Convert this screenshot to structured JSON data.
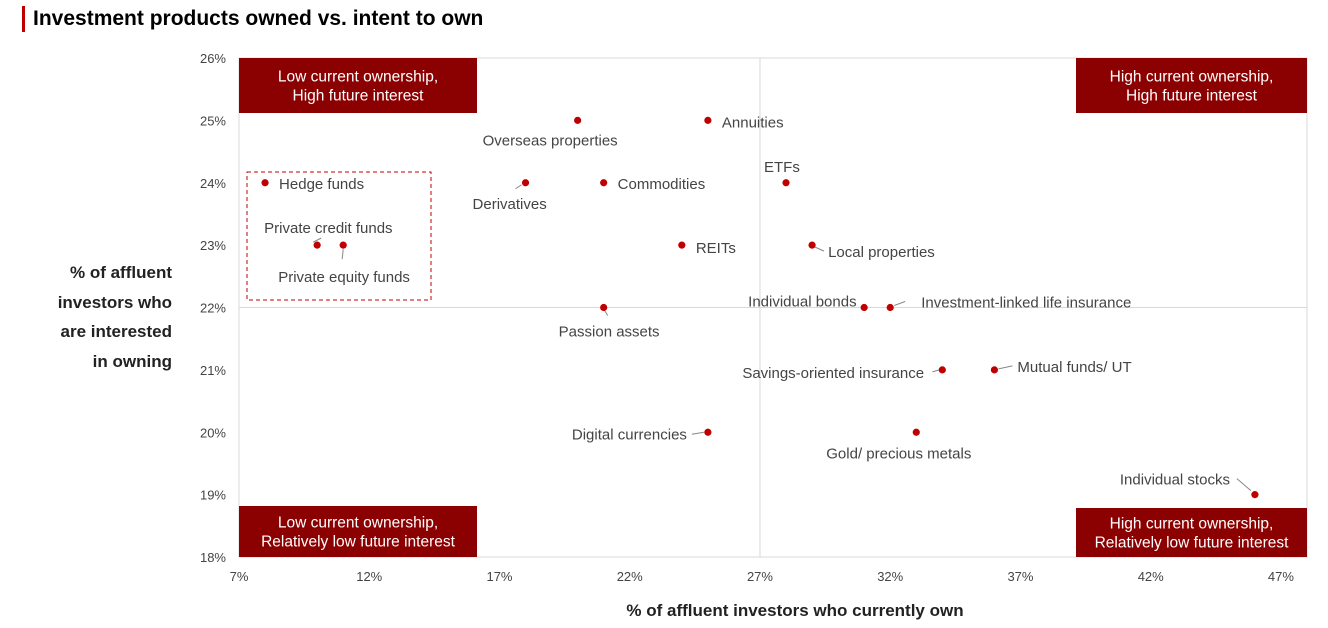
{
  "title": "Investment products owned vs. intent to own",
  "chart_data": {
    "type": "scatter",
    "xlabel": "% of affluent investors who currently own",
    "ylabel": [
      "% of affluent",
      "investors who",
      "are interested",
      "in owning"
    ],
    "xlim": [
      7,
      48
    ],
    "ylim": [
      18,
      26
    ],
    "x_ticks": [
      "7%",
      "12%",
      "17%",
      "22%",
      "27%",
      "32%",
      "37%",
      "42%",
      "47%"
    ],
    "x_tick_values": [
      7,
      12,
      17,
      22,
      27,
      32,
      37,
      42,
      47
    ],
    "y_ticks": [
      "18%",
      "19%",
      "20%",
      "21%",
      "22%",
      "23%",
      "24%",
      "25%",
      "26%"
    ],
    "y_tick_values": [
      18,
      19,
      20,
      21,
      22,
      23,
      24,
      25,
      26
    ],
    "divider": {
      "x": 27,
      "y": 22
    },
    "grid": false,
    "points": [
      {
        "name": "Hedge funds",
        "x": 8,
        "y": 24
      },
      {
        "name": "Private credit funds",
        "x": 10,
        "y": 23
      },
      {
        "name": "Private equity funds",
        "x": 11,
        "y": 23
      },
      {
        "name": "Derivatives",
        "x": 18,
        "y": 24
      },
      {
        "name": "Overseas properties",
        "x": 20,
        "y": 25
      },
      {
        "name": "Commodities",
        "x": 21,
        "y": 24
      },
      {
        "name": "Passion assets",
        "x": 21,
        "y": 22
      },
      {
        "name": "REITs",
        "x": 24,
        "y": 23
      },
      {
        "name": "Annuities",
        "x": 25,
        "y": 25
      },
      {
        "name": "Digital currencies",
        "x": 25,
        "y": 20
      },
      {
        "name": "ETFs",
        "x": 28,
        "y": 24
      },
      {
        "name": "Local properties",
        "x": 29,
        "y": 23
      },
      {
        "name": "Individual bonds",
        "x": 31,
        "y": 22
      },
      {
        "name": "Investment-linked life insurance",
        "x": 32,
        "y": 22
      },
      {
        "name": "Gold/ precious metals",
        "x": 33,
        "y": 20
      },
      {
        "name": "Savings-oriented insurance",
        "x": 34,
        "y": 21
      },
      {
        "name": "Mutual funds/ UT",
        "x": 36,
        "y": 21
      },
      {
        "name": "Individual stocks",
        "x": 46,
        "y": 19
      }
    ],
    "quadrant_labels": {
      "top_left": [
        "Low current ownership,",
        "High future interest"
      ],
      "top_right": [
        "High current ownership,",
        "High future interest"
      ],
      "bottom_left": [
        "Low current ownership,",
        "Relatively low future interest"
      ],
      "bottom_right": [
        "High current ownership,",
        "Relatively low future interest"
      ]
    },
    "colors": {
      "point": "#c00000",
      "quadrant_box": "#8b0000",
      "accent": "#c00000"
    }
  }
}
